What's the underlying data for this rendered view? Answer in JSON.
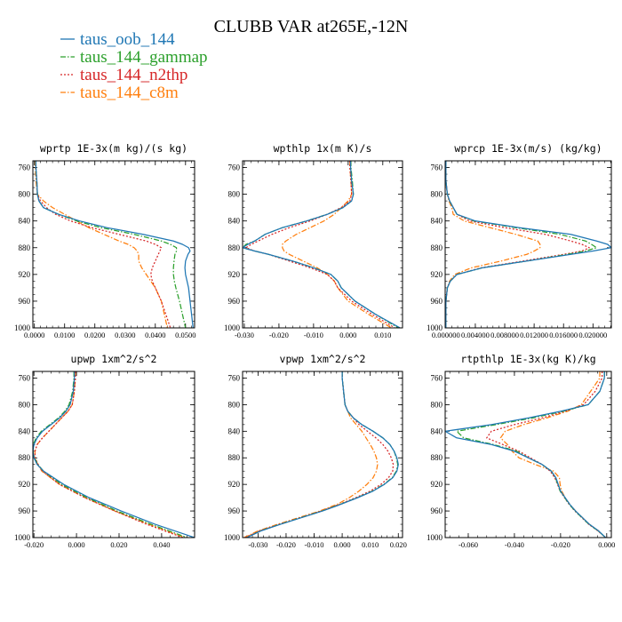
{
  "figure": {
    "title": "CLUBB VAR at265E,-12N",
    "legend": [
      {
        "label": "taus_oob_144",
        "color": "#1f77b4",
        "dash": "solid"
      },
      {
        "label": "taus_144_gammap",
        "color": "#2ca02c",
        "dash": "dashdot"
      },
      {
        "label": "taus_144_n2thp",
        "color": "#d62728",
        "dash": "dotted"
      },
      {
        "label": "taus_144_c8m",
        "color": "#ff7f0e",
        "dash": "dashdot"
      }
    ]
  },
  "chart_data": [
    {
      "type": "line",
      "title": "wprtp  1E-3x(m kg)/(s kg)",
      "xlim": [
        -0.0005,
        0.053
      ],
      "ylim": [
        1000,
        750
      ],
      "yticks": [
        760,
        800,
        840,
        880,
        920,
        960,
        1000
      ],
      "xticks": [
        0.0,
        0.01,
        0.02,
        0.03,
        0.04,
        0.05
      ],
      "xticklabels": [
        "0.0000",
        "0.0100",
        "0.0200",
        "0.0300",
        "0.0400",
        "0.0500"
      ],
      "y": [
        750,
        760,
        780,
        800,
        810,
        820,
        830,
        840,
        850,
        860,
        870,
        875,
        880,
        885,
        890,
        900,
        910,
        920,
        930,
        940,
        960,
        980,
        1000
      ],
      "series": [
        {
          "name": "taus_oob_144",
          "x": [
            0.0005,
            0.0005,
            0.0008,
            0.001,
            0.0015,
            0.003,
            0.008,
            0.015,
            0.024,
            0.036,
            0.046,
            0.049,
            0.051,
            0.0515,
            0.0508,
            0.05,
            0.0498,
            0.05,
            0.0505,
            0.051,
            0.0515,
            0.052,
            0.0525
          ]
        },
        {
          "name": "taus_144_gammap",
          "x": [
            0.0005,
            0.0005,
            0.0008,
            0.001,
            0.0015,
            0.003,
            0.008,
            0.014,
            0.022,
            0.033,
            0.042,
            0.045,
            0.047,
            0.047,
            0.0465,
            0.0462,
            0.046,
            0.046,
            0.0463,
            0.0468,
            0.048,
            0.049,
            0.05
          ]
        },
        {
          "name": "taus_144_n2thp",
          "x": [
            0.0005,
            0.0005,
            0.0008,
            0.001,
            0.002,
            0.004,
            0.007,
            0.012,
            0.019,
            0.028,
            0.037,
            0.04,
            0.042,
            0.0415,
            0.041,
            0.04,
            0.039,
            0.0385,
            0.039,
            0.04,
            0.042,
            0.0435,
            0.045
          ]
        },
        {
          "name": "taus_144_c8m",
          "x": [
            0.0003,
            0.0003,
            0.0005,
            0.001,
            0.003,
            0.006,
            0.01,
            0.014,
            0.018,
            0.023,
            0.028,
            0.031,
            0.033,
            0.034,
            0.0345,
            0.0345,
            0.0355,
            0.037,
            0.0385,
            0.04,
            0.042,
            0.043,
            0.044
          ]
        }
      ]
    },
    {
      "type": "line",
      "title": "wpthlp  1x(m K)/s",
      "xlim": [
        -0.0305,
        0.0157
      ],
      "ylim": [
        1000,
        750
      ],
      "yticks": [
        760,
        800,
        840,
        880,
        920,
        960,
        1000
      ],
      "xticks": [
        -0.03,
        -0.02,
        -0.01,
        0.0,
        0.01
      ],
      "xticklabels": [
        "-0.030",
        "-0.020",
        "-0.010",
        "0.000",
        "0.010"
      ],
      "y": [
        750,
        760,
        780,
        800,
        810,
        820,
        830,
        840,
        850,
        860,
        870,
        875,
        880,
        885,
        890,
        900,
        910,
        920,
        930,
        940,
        960,
        980,
        1000
      ],
      "series": [
        {
          "name": "taus_oob_144",
          "x": [
            0.0007,
            0.0007,
            0.001,
            0.0015,
            0.001,
            -0.0015,
            -0.006,
            -0.012,
            -0.019,
            -0.024,
            -0.027,
            -0.029,
            -0.0305,
            -0.027,
            -0.023,
            -0.016,
            -0.01,
            -0.005,
            -0.003,
            -0.002,
            0.002,
            0.008,
            0.015
          ]
        },
        {
          "name": "taus_144_gammap",
          "x": [
            0.0008,
            0.0008,
            0.0012,
            0.0015,
            0.001,
            -0.0015,
            -0.006,
            -0.012,
            -0.019,
            -0.024,
            -0.027,
            -0.0295,
            -0.0305,
            -0.027,
            -0.023,
            -0.016,
            -0.01,
            -0.005,
            -0.003,
            -0.002,
            0.002,
            0.008,
            0.0145
          ]
        },
        {
          "name": "taus_144_n2thp",
          "x": [
            0.0005,
            0.0005,
            0.0008,
            0.001,
            0.0005,
            -0.002,
            -0.006,
            -0.011,
            -0.017,
            -0.022,
            -0.026,
            -0.028,
            -0.0295,
            -0.027,
            -0.023,
            -0.017,
            -0.011,
            -0.006,
            -0.004,
            -0.003,
            0.001,
            0.007,
            0.0135
          ]
        },
        {
          "name": "taus_144_c8m",
          "x": [
            0.0005,
            0.0005,
            0.0008,
            0.001,
            0.0,
            -0.002,
            -0.004,
            -0.007,
            -0.011,
            -0.015,
            -0.018,
            -0.019,
            -0.019,
            -0.0185,
            -0.017,
            -0.013,
            -0.009,
            -0.006,
            -0.004,
            -0.003,
            0.0,
            0.006,
            0.0125
          ]
        }
      ]
    },
    {
      "type": "line",
      "title": "wprcp  1E-3x(m/s) (kg/kg)",
      "xlim": [
        -0.0001,
        0.0225
      ],
      "ylim": [
        1000,
        750
      ],
      "yticks": [
        760,
        800,
        840,
        880,
        920,
        960,
        1000
      ],
      "xticks": [
        0.0,
        0.004,
        0.008,
        0.012,
        0.016,
        0.02
      ],
      "xticklabels": [
        "0.000000",
        "0.004000",
        "0.008000",
        "0.012000",
        "0.016000",
        "0.020000"
      ],
      "y": [
        750,
        760,
        780,
        800,
        810,
        820,
        830,
        840,
        850,
        860,
        870,
        875,
        880,
        885,
        890,
        900,
        910,
        920,
        930,
        940,
        960,
        980,
        1000
      ],
      "series": [
        {
          "name": "taus_oob_144",
          "x": [
            0.0,
            0.0,
            0.0,
            0.0002,
            0.0005,
            0.001,
            0.0015,
            0.004,
            0.01,
            0.017,
            0.0205,
            0.022,
            0.0225,
            0.02,
            0.017,
            0.011,
            0.005,
            0.0015,
            0.0006,
            0.0002,
            0.0,
            0.0,
            0.0
          ]
        },
        {
          "name": "taus_144_gammap",
          "x": [
            0.0,
            0.0,
            0.0,
            0.0002,
            0.0005,
            0.001,
            0.0015,
            0.0038,
            0.0095,
            0.0155,
            0.019,
            0.0198,
            0.0205,
            0.019,
            0.0165,
            0.011,
            0.005,
            0.0015,
            0.0006,
            0.0002,
            0.0,
            0.0,
            0.0
          ]
        },
        {
          "name": "taus_144_n2thp",
          "x": [
            0.0,
            0.0,
            0.0,
            0.0002,
            0.0005,
            0.001,
            0.0015,
            0.0032,
            0.008,
            0.0135,
            0.017,
            0.0185,
            0.0195,
            0.0185,
            0.016,
            0.0105,
            0.0048,
            0.0015,
            0.0006,
            0.0002,
            0.0,
            0.0,
            0.0
          ]
        },
        {
          "name": "taus_144_c8m",
          "x": [
            0.0,
            0.0,
            0.0,
            0.0002,
            0.0004,
            0.0008,
            0.001,
            0.0025,
            0.006,
            0.0095,
            0.0125,
            0.0128,
            0.0128,
            0.012,
            0.011,
            0.0075,
            0.0035,
            0.0012,
            0.0005,
            0.0002,
            0.0,
            0.0,
            0.0
          ]
        }
      ]
    },
    {
      "type": "line",
      "title": "upwp  1xm^2/s^2",
      "xlim": [
        -0.0205,
        0.0555
      ],
      "ylim": [
        1000,
        750
      ],
      "yticks": [
        760,
        800,
        840,
        880,
        920,
        960,
        1000
      ],
      "xticks": [
        -0.02,
        0.0,
        0.02,
        0.04
      ],
      "xticklabels": [
        "-0.020",
        "0.000",
        "0.020",
        "0.040"
      ],
      "y": [
        750,
        760,
        780,
        800,
        810,
        820,
        830,
        840,
        850,
        860,
        870,
        880,
        890,
        900,
        920,
        940,
        960,
        980,
        1000
      ],
      "series": [
        {
          "name": "taus_oob_144",
          "x": [
            -0.001,
            -0.001,
            -0.0015,
            -0.003,
            -0.005,
            -0.008,
            -0.012,
            -0.016,
            -0.0185,
            -0.02,
            -0.0205,
            -0.02,
            -0.0185,
            -0.0155,
            -0.006,
            0.006,
            0.021,
            0.037,
            0.0555
          ]
        },
        {
          "name": "taus_144_gammap",
          "x": [
            -0.0012,
            -0.0012,
            -0.0018,
            -0.0035,
            -0.0055,
            -0.0085,
            -0.0125,
            -0.0165,
            -0.019,
            -0.0203,
            -0.0205,
            -0.0198,
            -0.0182,
            -0.0155,
            -0.007,
            0.005,
            0.019,
            0.035,
            0.052
          ]
        },
        {
          "name": "taus_144_n2thp",
          "x": [
            -0.0005,
            -0.0005,
            -0.001,
            -0.002,
            -0.004,
            -0.007,
            -0.01,
            -0.013,
            -0.016,
            -0.0185,
            -0.0195,
            -0.0195,
            -0.018,
            -0.016,
            -0.008,
            0.004,
            0.018,
            0.033,
            0.05
          ]
        },
        {
          "name": "taus_144_c8m",
          "x": [
            -0.0005,
            -0.0005,
            -0.001,
            -0.002,
            -0.004,
            -0.007,
            -0.01,
            -0.013,
            -0.016,
            -0.0185,
            -0.0195,
            -0.0195,
            -0.0182,
            -0.0163,
            -0.008,
            0.004,
            0.018,
            0.034,
            0.051
          ]
        }
      ]
    },
    {
      "type": "line",
      "title": "vpwp  1xm^2/s^2",
      "xlim": [
        -0.0355,
        0.0215
      ],
      "ylim": [
        1000,
        750
      ],
      "yticks": [
        760,
        800,
        840,
        880,
        920,
        960,
        1000
      ],
      "xticks": [
        -0.03,
        -0.02,
        -0.01,
        0.0,
        0.01,
        0.02
      ],
      "xticklabels": [
        "-0.030",
        "-0.020",
        "-0.010",
        "0.000",
        "0.010",
        "0.020"
      ],
      "y": [
        750,
        760,
        780,
        800,
        810,
        820,
        830,
        840,
        850,
        860,
        870,
        880,
        890,
        900,
        910,
        920,
        930,
        940,
        950,
        960,
        970,
        980,
        990,
        1000
      ],
      "series": [
        {
          "name": "taus_oob_144",
          "x": [
            0.0,
            0.0,
            0.0005,
            0.001,
            0.002,
            0.004,
            0.007,
            0.011,
            0.0145,
            0.017,
            0.0185,
            0.0195,
            0.02,
            0.0195,
            0.018,
            0.015,
            0.011,
            0.0055,
            -0.0005,
            -0.007,
            -0.0145,
            -0.022,
            -0.029,
            -0.034
          ]
        },
        {
          "name": "taus_144_gammap",
          "x": [
            0.0,
            0.0,
            0.0005,
            0.001,
            0.002,
            0.004,
            0.007,
            0.011,
            0.0145,
            0.017,
            0.0185,
            0.0193,
            0.0198,
            0.0193,
            0.0178,
            0.0148,
            0.0108,
            0.0053,
            -0.0007,
            -0.0072,
            -0.0147,
            -0.0222,
            -0.0292,
            -0.034
          ]
        },
        {
          "name": "taus_144_n2thp",
          "x": [
            0.0,
            0.0,
            0.0005,
            0.001,
            0.002,
            0.004,
            0.006,
            0.009,
            0.012,
            0.0145,
            0.0163,
            0.0175,
            0.0182,
            0.018,
            0.0165,
            0.0138,
            0.01,
            0.0048,
            -0.001,
            -0.0075,
            -0.015,
            -0.0225,
            -0.0295,
            -0.0345
          ]
        },
        {
          "name": "taus_144_c8m",
          "x": [
            0.0,
            0.0,
            0.0005,
            0.001,
            0.002,
            0.003,
            0.005,
            0.007,
            0.0085,
            0.01,
            0.0113,
            0.0122,
            0.0126,
            0.0122,
            0.011,
            0.0088,
            0.006,
            0.0025,
            -0.0018,
            -0.008,
            -0.0155,
            -0.023,
            -0.03,
            -0.035
          ]
        }
      ]
    },
    {
      "type": "line",
      "title": "rtpthlp  1E-3x(kg K)/kg",
      "xlim": [
        -0.07,
        0.002
      ],
      "ylim": [
        1000,
        750
      ],
      "yticks": [
        760,
        800,
        840,
        880,
        920,
        960,
        1000
      ],
      "xticks": [
        -0.06,
        -0.04,
        -0.02,
        0.0
      ],
      "xticklabels": [
        "-0.060",
        "-0.040",
        "-0.020",
        "0.000"
      ],
      "y": [
        750,
        760,
        780,
        800,
        810,
        820,
        830,
        840,
        850,
        860,
        870,
        880,
        890,
        900,
        910,
        920,
        930,
        940,
        950,
        960,
        970,
        980,
        990,
        1000
      ],
      "series": [
        {
          "name": "taus_oob_144",
          "x": [
            -0.001,
            -0.001,
            -0.003,
            -0.008,
            -0.02,
            -0.034,
            -0.05,
            -0.07,
            -0.065,
            -0.05,
            -0.04,
            -0.034,
            -0.028,
            -0.024,
            -0.022,
            -0.021,
            -0.02,
            -0.018,
            -0.016,
            -0.0135,
            -0.0105,
            -0.0075,
            -0.0035,
            -0.0005
          ]
        },
        {
          "name": "taus_144_gammap",
          "x": [
            -0.001,
            -0.001,
            -0.003,
            -0.008,
            -0.019,
            -0.032,
            -0.048,
            -0.065,
            -0.062,
            -0.049,
            -0.039,
            -0.034,
            -0.028,
            -0.024,
            -0.0222,
            -0.0212,
            -0.0202,
            -0.0182,
            -0.0162,
            -0.0137,
            -0.0107,
            -0.0077,
            -0.0037,
            -0.0005
          ]
        },
        {
          "name": "taus_144_n2thp",
          "x": [
            -0.002,
            -0.002,
            -0.005,
            -0.01,
            -0.018,
            -0.028,
            -0.04,
            -0.05,
            -0.052,
            -0.045,
            -0.038,
            -0.033,
            -0.028,
            -0.0245,
            -0.0225,
            -0.0213,
            -0.0202,
            -0.0183,
            -0.0163,
            -0.0138,
            -0.0108,
            -0.0078,
            -0.0038,
            -0.0005
          ]
        },
        {
          "name": "taus_144_c8m",
          "x": [
            -0.003,
            -0.003,
            -0.007,
            -0.011,
            -0.017,
            -0.026,
            -0.036,
            -0.044,
            -0.046,
            -0.043,
            -0.041,
            -0.038,
            -0.031,
            -0.023,
            -0.0205,
            -0.0202,
            -0.0195,
            -0.018,
            -0.016,
            -0.0135,
            -0.0105,
            -0.0075,
            -0.0035,
            -0.0005
          ]
        }
      ]
    }
  ]
}
